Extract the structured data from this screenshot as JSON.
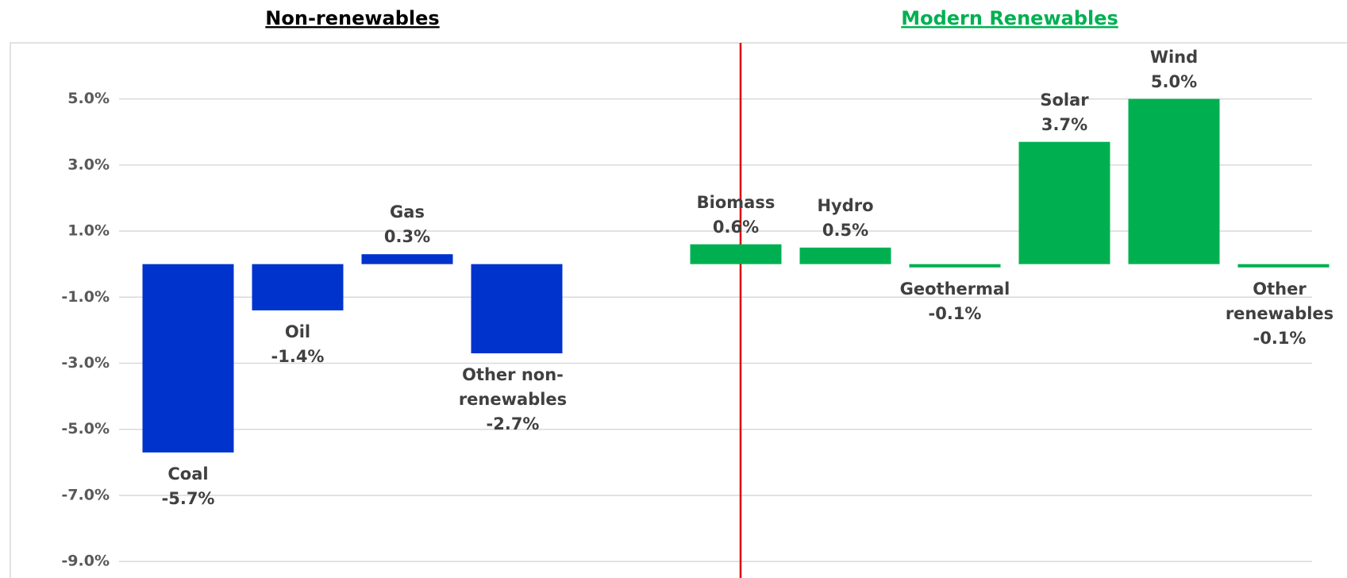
{
  "chart_data": {
    "type": "bar",
    "groups": [
      {
        "name": "Non-renewables",
        "title_color": "#000000",
        "color": "#0033cc",
        "categories": [
          "Coal",
          "Oil",
          "Gas",
          "Other non-renewables"
        ],
        "values": [
          -5.7,
          -1.4,
          0.3,
          -2.7
        ],
        "value_labels": [
          "-5.7%",
          "-1.4%",
          "0.3%",
          "-2.7%"
        ]
      },
      {
        "name": "Modern Renewables",
        "title_color": "#00b050",
        "color": "#00b050",
        "categories": [
          "Biomass",
          "Hydro",
          "Geothermal",
          "Solar",
          "Wind",
          "Other renewables"
        ],
        "values": [
          0.6,
          0.5,
          -0.1,
          3.7,
          5.0,
          -0.1
        ],
        "value_labels": [
          "0.6%",
          "0.5%",
          "-0.1%",
          "3.7%",
          "5.0%",
          "-0.1%"
        ]
      }
    ],
    "ylim": [
      -9.5,
      6.6
    ],
    "yticks": [
      {
        "value": 5,
        "label": "5.0%"
      },
      {
        "value": 3,
        "label": "3.0%"
      },
      {
        "value": 1,
        "label": "1.0%"
      },
      {
        "value": -1,
        "label": "-1.0%"
      },
      {
        "value": -3,
        "label": "-3.0%"
      },
      {
        "value": -5,
        "label": "-5.0%"
      },
      {
        "value": -7,
        "label": "-7.0%"
      },
      {
        "value": -9,
        "label": "-9.0%"
      }
    ],
    "grid": true
  }
}
